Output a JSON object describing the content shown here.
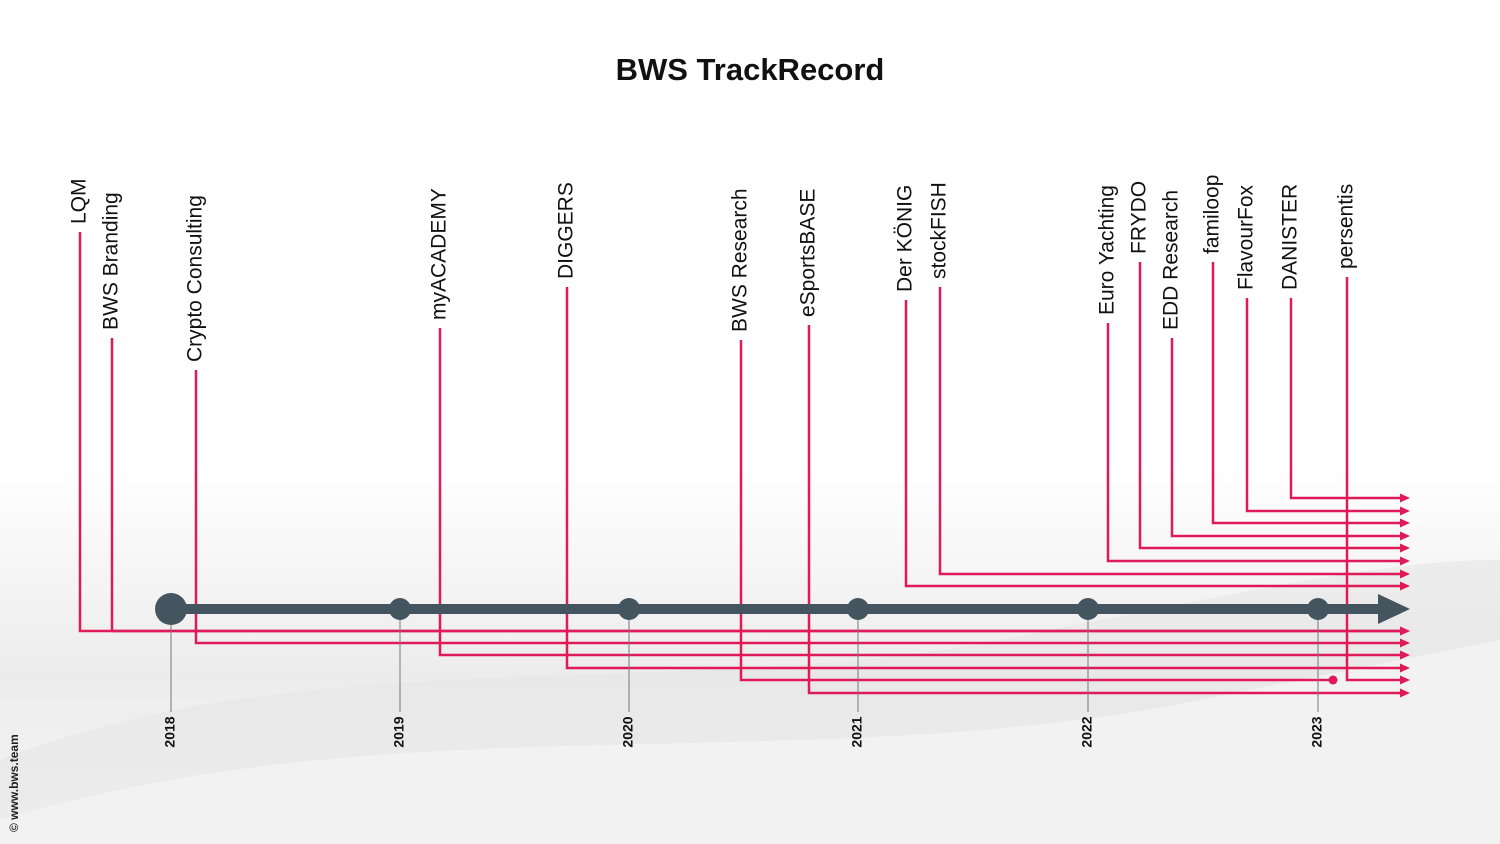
{
  "title": "BWS TrackRecord",
  "years": [
    "2018",
    "2019",
    "2020",
    "2021",
    "2022",
    "2023"
  ],
  "projects": [
    "LQM",
    "BWS Branding",
    "Crypto Consulting",
    "myACADEMY",
    "DIGGERS",
    "BWS Research",
    "eSportsBASE",
    "Der KÖNIG",
    "stockFISH",
    "Euro Yachting",
    "FRYDO",
    "EDD Research",
    "familoop",
    "FlavourFox",
    "DANISTER",
    "persentis"
  ],
  "copyright": "© www.bws.team"
}
